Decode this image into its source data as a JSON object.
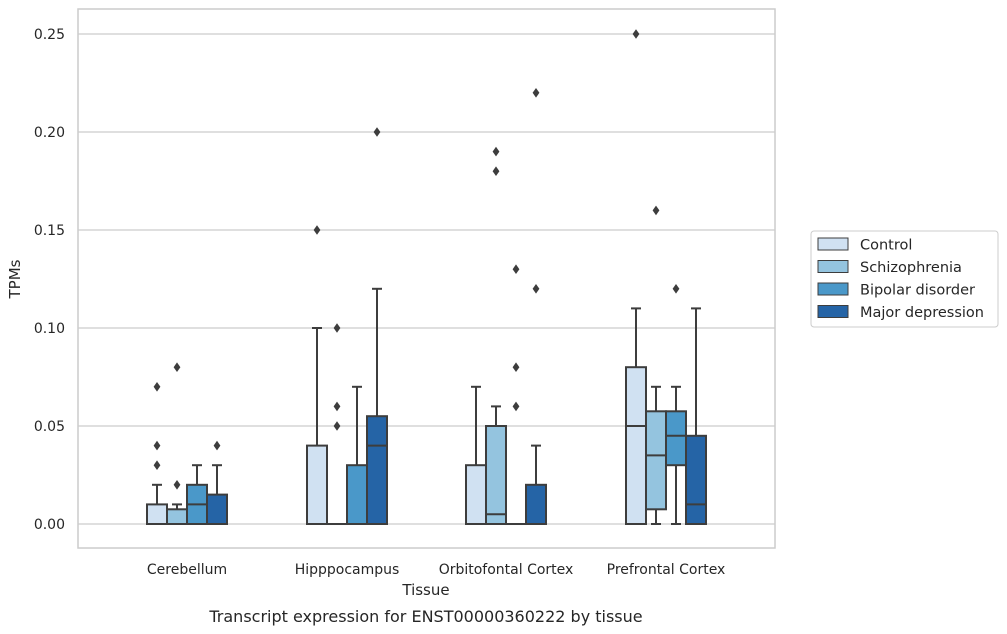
{
  "chart_data": {
    "type": "boxplot",
    "title": "",
    "caption": "Transcript expression for ENST00000360222 by tissue",
    "xlabel": "Tissue",
    "ylabel": "TPMs",
    "ylim": [
      -0.012,
      0.262
    ],
    "yticks": [
      0.0,
      0.05,
      0.1,
      0.15,
      0.2,
      0.25
    ],
    "ytick_labels": [
      "0.00",
      "0.05",
      "0.10",
      "0.15",
      "0.20",
      "0.25"
    ],
    "grid": true,
    "legend_position": "right",
    "categories": [
      "Cerebellum",
      "Hipppocampus",
      "Orbitofontal Cortex",
      "Prefrontal Cortex"
    ],
    "series": [
      {
        "name": "Control",
        "color": "#d0e1f2",
        "boxes": [
          {
            "q1": 0.0,
            "median": 0.0,
            "q3": 0.01,
            "whisker_low": 0.0,
            "whisker_high": 0.02,
            "outliers": [
              0.03,
              0.04,
              0.07
            ]
          },
          {
            "q1": 0.0,
            "median": 0.0,
            "q3": 0.04,
            "whisker_low": 0.0,
            "whisker_high": 0.1,
            "outliers": [
              0.15
            ]
          },
          {
            "q1": 0.0,
            "median": 0.0,
            "q3": 0.03,
            "whisker_low": 0.0,
            "whisker_high": 0.07,
            "outliers": []
          },
          {
            "q1": 0.0,
            "median": 0.05,
            "q3": 0.08,
            "whisker_low": 0.0,
            "whisker_high": 0.11,
            "outliers": [
              0.25
            ]
          }
        ]
      },
      {
        "name": "Schizophrenia",
        "color": "#94c4df",
        "boxes": [
          {
            "q1": 0.0,
            "median": 0.0,
            "q3": 0.0075,
            "whisker_low": 0.0,
            "whisker_high": 0.01,
            "outliers": [
              0.02,
              0.08
            ]
          },
          {
            "q1": 0.0,
            "median": 0.0,
            "q3": 0.0,
            "whisker_low": 0.0,
            "whisker_high": 0.0,
            "outliers": [
              0.05,
              0.06,
              0.1
            ]
          },
          {
            "q1": 0.0,
            "median": 0.005,
            "q3": 0.05,
            "whisker_low": 0.0,
            "whisker_high": 0.06,
            "outliers": [
              0.18,
              0.19
            ]
          },
          {
            "q1": 0.0075,
            "median": 0.035,
            "q3": 0.0575,
            "whisker_low": 0.0,
            "whisker_high": 0.07,
            "outliers": [
              0.16
            ]
          }
        ]
      },
      {
        "name": "Bipolar disorder",
        "color": "#4a98c9",
        "boxes": [
          {
            "q1": 0.0,
            "median": 0.01,
            "q3": 0.02,
            "whisker_low": 0.0,
            "whisker_high": 0.03,
            "outliers": []
          },
          {
            "q1": 0.0,
            "median": 0.0,
            "q3": 0.03,
            "whisker_low": 0.0,
            "whisker_high": 0.07,
            "outliers": []
          },
          {
            "q1": 0.0,
            "median": 0.0,
            "q3": 0.0,
            "whisker_low": 0.0,
            "whisker_high": 0.0,
            "outliers": [
              0.06,
              0.08,
              0.13
            ]
          },
          {
            "q1": 0.03,
            "median": 0.045,
            "q3": 0.0575,
            "whisker_low": 0.0,
            "whisker_high": 0.07,
            "outliers": [
              0.12
            ]
          }
        ]
      },
      {
        "name": "Major depression",
        "color": "#2564a6",
        "boxes": [
          {
            "q1": 0.0,
            "median": 0.0,
            "q3": 0.015,
            "whisker_low": 0.0,
            "whisker_high": 0.03,
            "outliers": [
              0.04
            ]
          },
          {
            "q1": 0.0,
            "median": 0.04,
            "q3": 0.055,
            "whisker_low": 0.0,
            "whisker_high": 0.12,
            "outliers": [
              0.2
            ]
          },
          {
            "q1": 0.0,
            "median": 0.0,
            "q3": 0.02,
            "whisker_low": 0.0,
            "whisker_high": 0.04,
            "outliers": [
              0.12,
              0.22
            ]
          },
          {
            "q1": 0.0,
            "median": 0.01,
            "q3": 0.045,
            "whisker_low": 0.0,
            "whisker_high": 0.11,
            "outliers": []
          }
        ]
      }
    ]
  }
}
